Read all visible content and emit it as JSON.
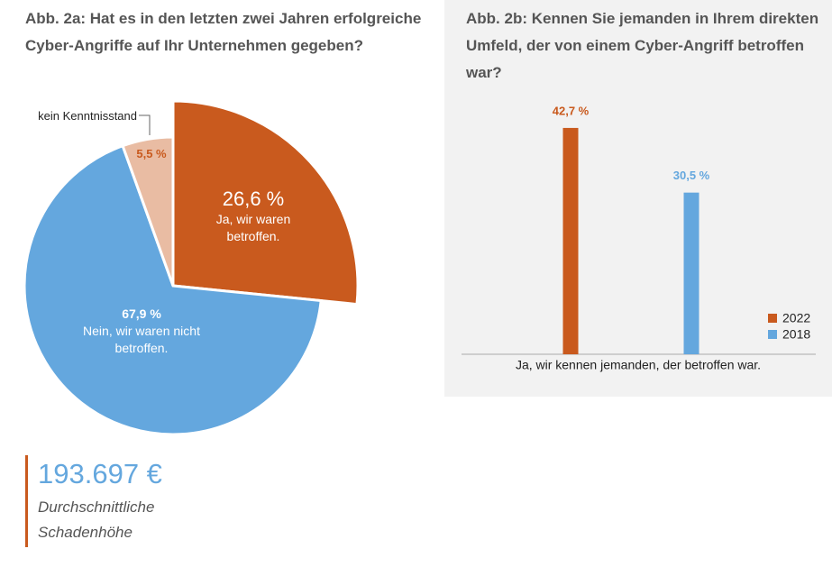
{
  "chart_data": [
    {
      "type": "pie",
      "title": "Abb. 2a: Hat es in den letzten zwei Jahren erfolgreiche Cyber-Angriffe auf Ihr Unternehmen gegeben?",
      "categories": [
        "Ja, wir waren betroffen.",
        "kein Kenntnisstand",
        "Nein, wir waren nicht betroffen."
      ],
      "values": [
        26.6,
        5.5,
        67.9
      ],
      "value_labels": [
        "26,6 %",
        "5,5 %",
        "67,9 %"
      ],
      "colors": [
        "#c95a1e",
        "#e9bca3",
        "#64a7de"
      ]
    },
    {
      "type": "bar",
      "title": "Abb. 2b: Kennen Sie jemanden in Ihrem direkten Umfeld, der von einem Cyber-Angriff betroffen war?",
      "categories": [
        "Ja, wir kennen jemanden, der betroffen war."
      ],
      "series": [
        {
          "name": "2022",
          "color": "#c95a1e",
          "values": [
            42.7
          ],
          "value_labels": [
            "42,7 %"
          ]
        },
        {
          "name": "2018",
          "color": "#64a7de",
          "values": [
            30.5
          ],
          "value_labels": [
            "30,5 %"
          ]
        }
      ],
      "ylim": [
        0,
        50
      ],
      "legend": "right"
    }
  ],
  "stat": {
    "value": "193.697 €",
    "caption": "Durchschnittliche Schadenhöhe"
  }
}
